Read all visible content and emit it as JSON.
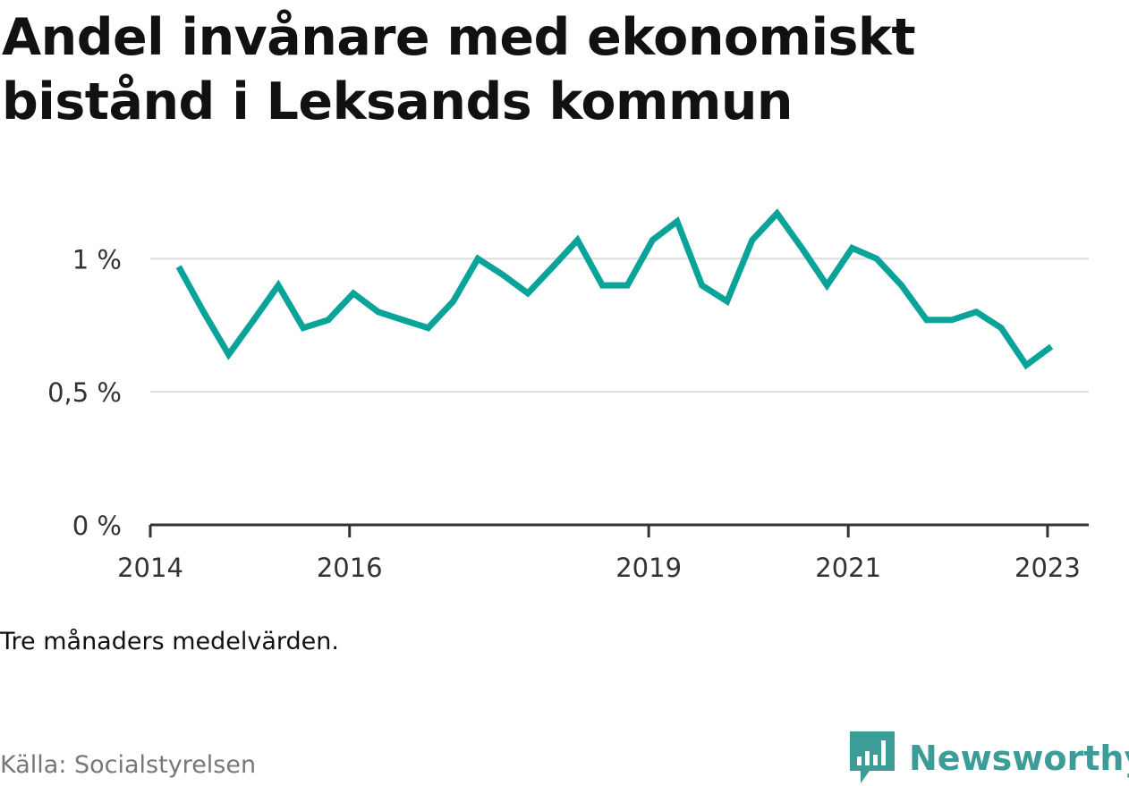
{
  "colors": {
    "line": "#0aa39a",
    "grid": "#dddddd",
    "axis": "#333333",
    "brand": "#3c9c97"
  },
  "note": "Tre månaders medelvärden.",
  "source": "Källa: Socialstyrelsen",
  "brand": {
    "name": "Newsworthy",
    "logo_icon": "bar-chart-speech-bubble-icon"
  },
  "chart_data": {
    "type": "line",
    "title": "Andel invånare med ekonomiskt bistånd i Leksands kommun",
    "xlabel": "",
    "ylabel": "",
    "ylim": [
      0,
      1.3
    ],
    "xlim": [
      "2014-01-01",
      "2023-06-01"
    ],
    "y_ticks": [
      {
        "value": 0,
        "label": "0 %"
      },
      {
        "value": 0.5,
        "label": "0,5 %"
      },
      {
        "value": 1,
        "label": "1 %"
      }
    ],
    "x_ticks": [
      {
        "date": "2014-01-01",
        "label": "2014"
      },
      {
        "date": "2016-01-01",
        "label": "2016"
      },
      {
        "date": "2019-01-01",
        "label": "2019"
      },
      {
        "date": "2021-01-01",
        "label": "2021"
      },
      {
        "date": "2023-01-01",
        "label": "2023"
      }
    ],
    "grid": true,
    "legend": "none",
    "series": [
      {
        "x": [
          "2014-04-15",
          "2014-07-15",
          "2014-10-15",
          "2015-01-15",
          "2015-04-15",
          "2015-07-15",
          "2015-10-15",
          "2016-01-15",
          "2016-04-15",
          "2016-07-15",
          "2016-10-15",
          "2017-01-15",
          "2017-04-15",
          "2017-07-15",
          "2017-10-15",
          "2018-01-15",
          "2018-04-15",
          "2018-07-15",
          "2018-10-15",
          "2019-01-15",
          "2019-04-15",
          "2019-07-15",
          "2019-10-15",
          "2020-01-15",
          "2020-04-15",
          "2020-07-15",
          "2020-10-15",
          "2021-01-15",
          "2021-04-15",
          "2021-07-15",
          "2021-10-15",
          "2022-01-15",
          "2022-04-15",
          "2022-07-15",
          "2022-10-15",
          "2023-01-15"
        ],
        "values": [
          0.97,
          0.8,
          0.64,
          0.77,
          0.9,
          0.74,
          0.77,
          0.87,
          0.8,
          0.77,
          0.74,
          0.84,
          1.0,
          0.94,
          0.87,
          0.97,
          1.07,
          0.9,
          0.9,
          1.07,
          1.14,
          0.9,
          0.84,
          1.07,
          1.17,
          1.04,
          0.9,
          1.04,
          1.0,
          0.9,
          0.77,
          0.77,
          0.8,
          0.74,
          0.6,
          0.67
        ]
      }
    ]
  }
}
